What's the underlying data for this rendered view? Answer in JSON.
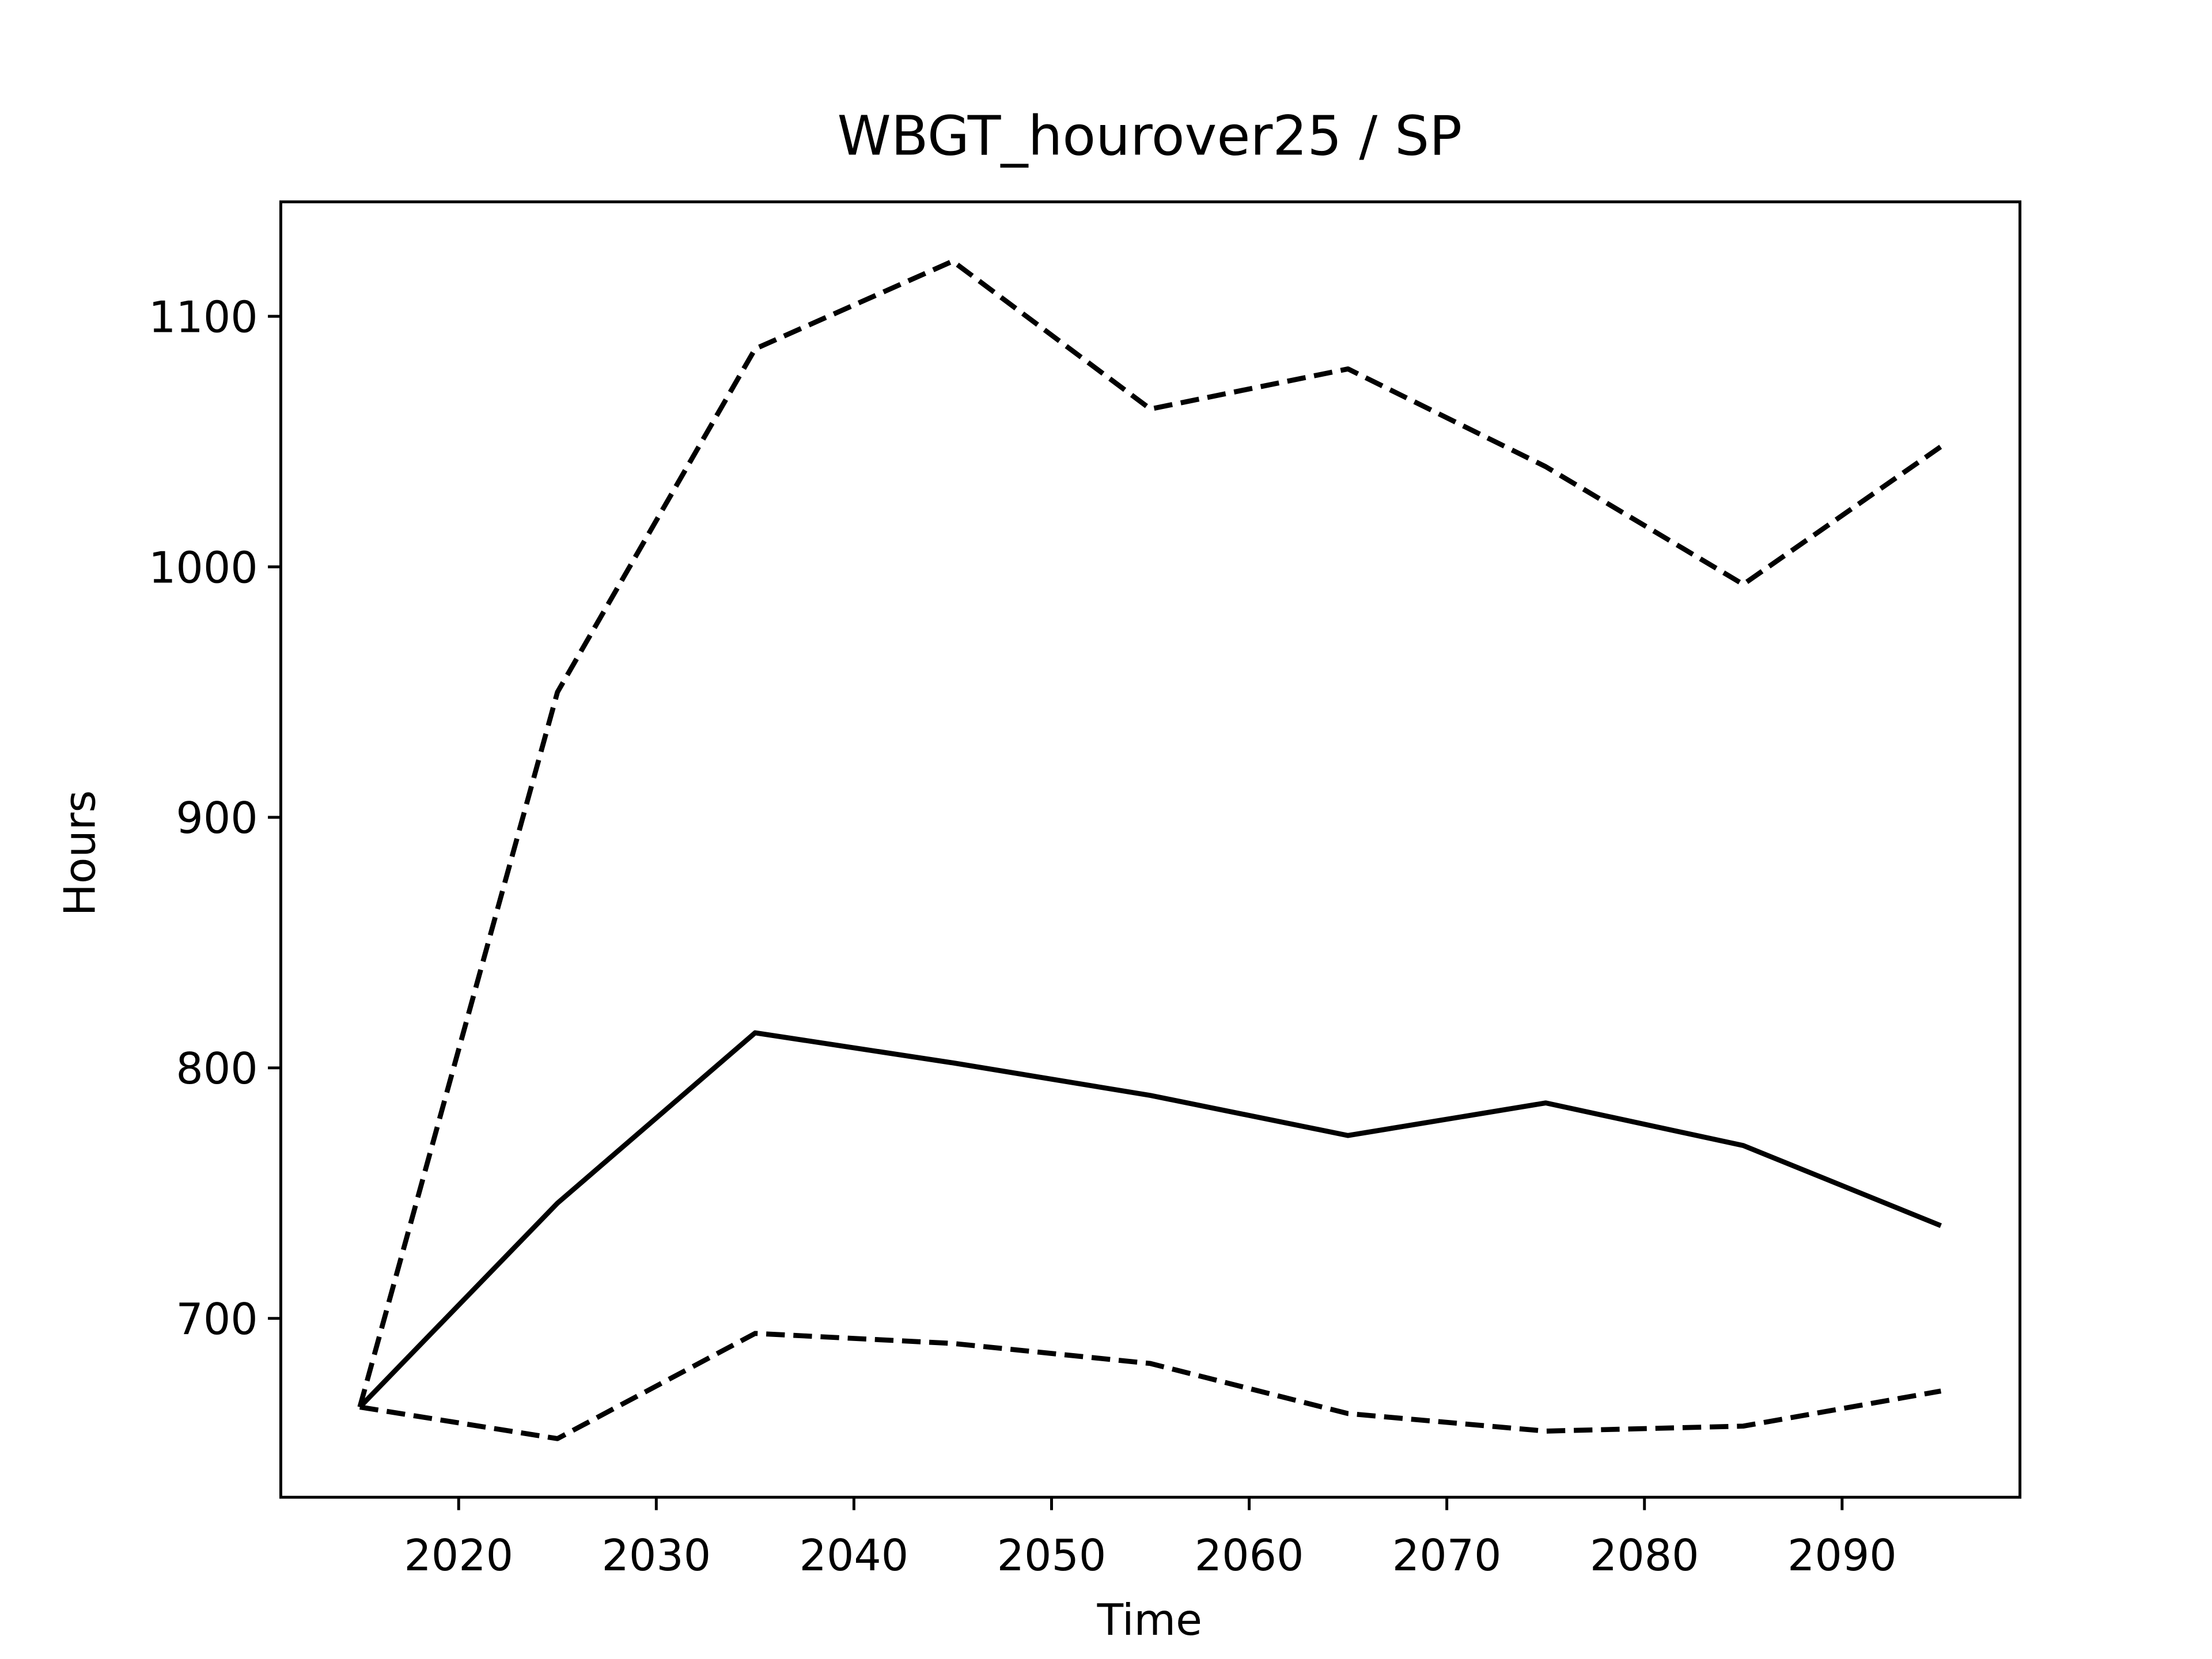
{
  "chart_data": {
    "type": "line",
    "title": "WBGT_hourover25 / SP",
    "x_label": "Time",
    "y_label": "Hours",
    "x": [
      2015,
      2025,
      2035,
      2045,
      2055,
      2065,
      2075,
      2085,
      2095
    ],
    "series": [
      {
        "color": "#000000",
        "dash": "solid",
        "values": [
          664.6,
          746,
          814,
          802,
          789,
          773,
          786,
          769,
          737
        ]
      },
      {
        "color": "#000000",
        "dash": "dashed",
        "values": [
          664.6,
          950,
          1087,
          1122,
          1063,
          1079,
          1040,
          993,
          1048
        ]
      },
      {
        "color": "#000000",
        "dash": "dashed",
        "values": [
          664.6,
          652,
          694,
          690,
          682,
          662,
          655,
          657,
          671
        ]
      }
    ],
    "xlim": [
      2011,
      2099
    ],
    "xticks": [
      2020,
      2030,
      2040,
      2050,
      2060,
      2070,
      2080,
      2090
    ],
    "ylim": [
      628.6,
      1145.7
    ],
    "yticks": [
      700,
      800,
      900,
      1000,
      1100
    ],
    "grid": false
  }
}
